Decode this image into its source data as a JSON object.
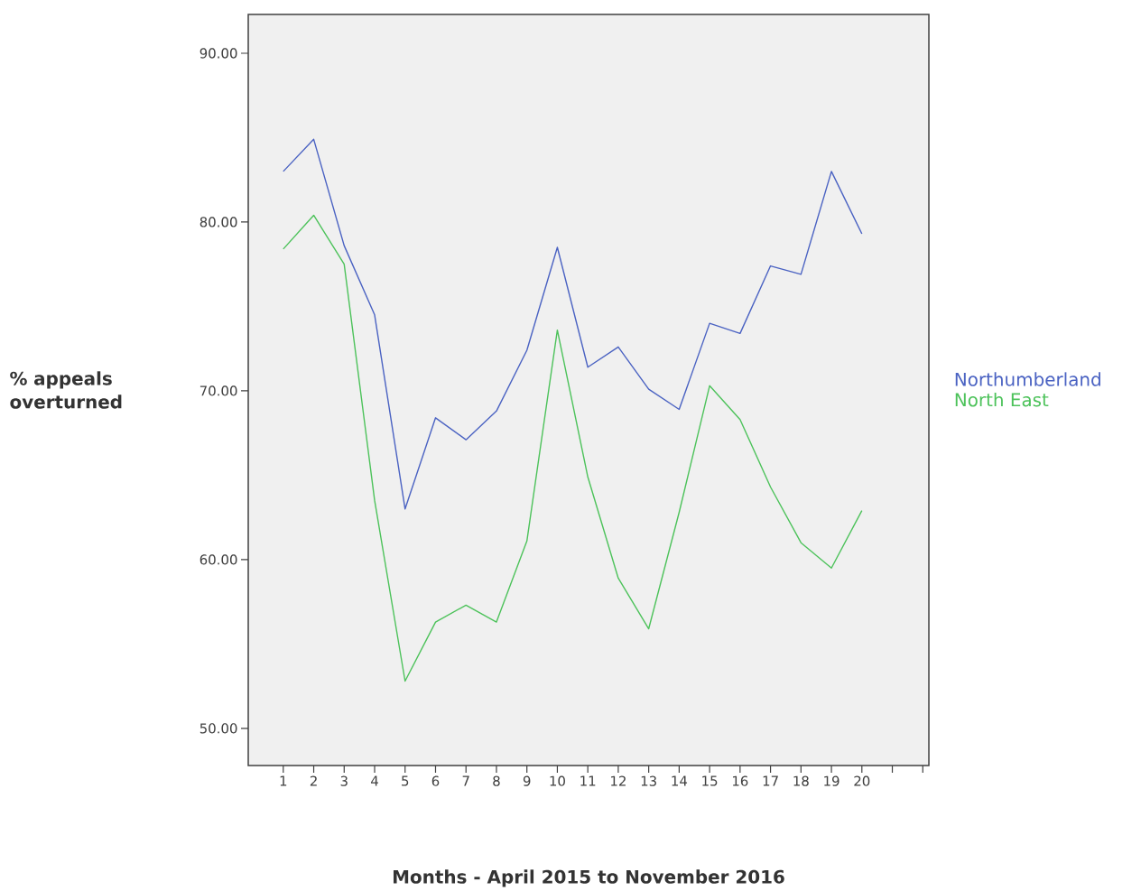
{
  "chart_data": {
    "type": "line",
    "xlabel": "Months - April 2015 to November 2016",
    "ylabel": "% appeals overturned",
    "categories": [
      "1",
      "2",
      "3",
      "4",
      "5",
      "6",
      "7",
      "8",
      "9",
      "10",
      "11",
      "12",
      "13",
      "14",
      "15",
      "16",
      "17",
      "18",
      "19",
      "20",
      null,
      null
    ],
    "series": [
      {
        "name": "Northumberland",
        "color": "#4a62c2",
        "values": [
          83.0,
          84.9,
          78.6,
          74.5,
          63.0,
          68.4,
          67.1,
          68.8,
          72.4,
          78.5,
          71.4,
          72.6,
          70.1,
          68.9,
          74.0,
          73.4,
          77.4,
          76.9,
          83.0,
          79.3,
          null,
          null
        ]
      },
      {
        "name": "North East",
        "color": "#4cc25a",
        "values": [
          78.4,
          80.4,
          77.5,
          63.5,
          52.8,
          56.3,
          57.3,
          56.3,
          61.1,
          73.6,
          64.9,
          58.9,
          55.9,
          62.8,
          70.3,
          68.3,
          64.3,
          61.0,
          59.5,
          62.9,
          null,
          null
        ]
      }
    ],
    "ylim": [
      47.8,
      92.3
    ],
    "yticks": [
      {
        "value": 50,
        "label": "50.00"
      },
      {
        "value": 60,
        "label": "60.00"
      },
      {
        "value": 70,
        "label": "70.00"
      },
      {
        "value": 80,
        "label": "80.00"
      },
      {
        "value": 90,
        "label": "90.00"
      }
    ],
    "legend": "right",
    "grid": false,
    "line_style": "solid"
  }
}
